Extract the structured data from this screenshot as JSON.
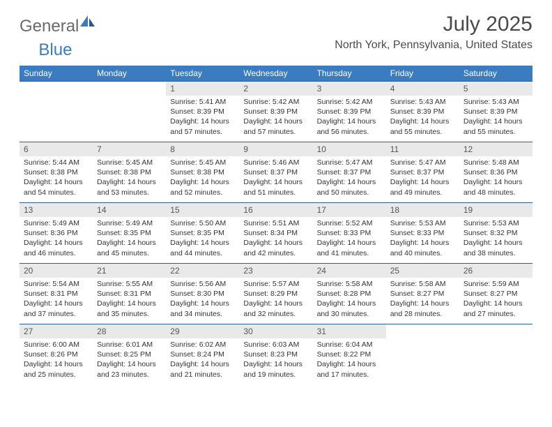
{
  "brand": {
    "part1": "General",
    "part2": "Blue"
  },
  "title": "July 2025",
  "location": "North York, Pennsylvania, United States",
  "colors": {
    "header_bg": "#3b7bbf",
    "header_fg": "#ffffff",
    "daynum_bg": "#e9e9e9",
    "border": "#2f5f8f",
    "logo_gray": "#6a6a6a",
    "logo_blue": "#3b7bbf"
  },
  "day_headers": [
    "Sunday",
    "Monday",
    "Tuesday",
    "Wednesday",
    "Thursday",
    "Friday",
    "Saturday"
  ],
  "weeks": [
    {
      "nums": [
        "",
        "",
        "1",
        "2",
        "3",
        "4",
        "5"
      ],
      "cells": [
        null,
        null,
        {
          "sunrise": "5:41 AM",
          "sunset": "8:39 PM",
          "daylight": "14 hours and 57 minutes."
        },
        {
          "sunrise": "5:42 AM",
          "sunset": "8:39 PM",
          "daylight": "14 hours and 57 minutes."
        },
        {
          "sunrise": "5:42 AM",
          "sunset": "8:39 PM",
          "daylight": "14 hours and 56 minutes."
        },
        {
          "sunrise": "5:43 AM",
          "sunset": "8:39 PM",
          "daylight": "14 hours and 55 minutes."
        },
        {
          "sunrise": "5:43 AM",
          "sunset": "8:39 PM",
          "daylight": "14 hours and 55 minutes."
        }
      ]
    },
    {
      "nums": [
        "6",
        "7",
        "8",
        "9",
        "10",
        "11",
        "12"
      ],
      "cells": [
        {
          "sunrise": "5:44 AM",
          "sunset": "8:38 PM",
          "daylight": "14 hours and 54 minutes."
        },
        {
          "sunrise": "5:45 AM",
          "sunset": "8:38 PM",
          "daylight": "14 hours and 53 minutes."
        },
        {
          "sunrise": "5:45 AM",
          "sunset": "8:38 PM",
          "daylight": "14 hours and 52 minutes."
        },
        {
          "sunrise": "5:46 AM",
          "sunset": "8:37 PM",
          "daylight": "14 hours and 51 minutes."
        },
        {
          "sunrise": "5:47 AM",
          "sunset": "8:37 PM",
          "daylight": "14 hours and 50 minutes."
        },
        {
          "sunrise": "5:47 AM",
          "sunset": "8:37 PM",
          "daylight": "14 hours and 49 minutes."
        },
        {
          "sunrise": "5:48 AM",
          "sunset": "8:36 PM",
          "daylight": "14 hours and 48 minutes."
        }
      ]
    },
    {
      "nums": [
        "13",
        "14",
        "15",
        "16",
        "17",
        "18",
        "19"
      ],
      "cells": [
        {
          "sunrise": "5:49 AM",
          "sunset": "8:36 PM",
          "daylight": "14 hours and 46 minutes."
        },
        {
          "sunrise": "5:49 AM",
          "sunset": "8:35 PM",
          "daylight": "14 hours and 45 minutes."
        },
        {
          "sunrise": "5:50 AM",
          "sunset": "8:35 PM",
          "daylight": "14 hours and 44 minutes."
        },
        {
          "sunrise": "5:51 AM",
          "sunset": "8:34 PM",
          "daylight": "14 hours and 42 minutes."
        },
        {
          "sunrise": "5:52 AM",
          "sunset": "8:33 PM",
          "daylight": "14 hours and 41 minutes."
        },
        {
          "sunrise": "5:53 AM",
          "sunset": "8:33 PM",
          "daylight": "14 hours and 40 minutes."
        },
        {
          "sunrise": "5:53 AM",
          "sunset": "8:32 PM",
          "daylight": "14 hours and 38 minutes."
        }
      ]
    },
    {
      "nums": [
        "20",
        "21",
        "22",
        "23",
        "24",
        "25",
        "26"
      ],
      "cells": [
        {
          "sunrise": "5:54 AM",
          "sunset": "8:31 PM",
          "daylight": "14 hours and 37 minutes."
        },
        {
          "sunrise": "5:55 AM",
          "sunset": "8:31 PM",
          "daylight": "14 hours and 35 minutes."
        },
        {
          "sunrise": "5:56 AM",
          "sunset": "8:30 PM",
          "daylight": "14 hours and 34 minutes."
        },
        {
          "sunrise": "5:57 AM",
          "sunset": "8:29 PM",
          "daylight": "14 hours and 32 minutes."
        },
        {
          "sunrise": "5:58 AM",
          "sunset": "8:28 PM",
          "daylight": "14 hours and 30 minutes."
        },
        {
          "sunrise": "5:58 AM",
          "sunset": "8:27 PM",
          "daylight": "14 hours and 28 minutes."
        },
        {
          "sunrise": "5:59 AM",
          "sunset": "8:27 PM",
          "daylight": "14 hours and 27 minutes."
        }
      ]
    },
    {
      "nums": [
        "27",
        "28",
        "29",
        "30",
        "31",
        "",
        ""
      ],
      "cells": [
        {
          "sunrise": "6:00 AM",
          "sunset": "8:26 PM",
          "daylight": "14 hours and 25 minutes."
        },
        {
          "sunrise": "6:01 AM",
          "sunset": "8:25 PM",
          "daylight": "14 hours and 23 minutes."
        },
        {
          "sunrise": "6:02 AM",
          "sunset": "8:24 PM",
          "daylight": "14 hours and 21 minutes."
        },
        {
          "sunrise": "6:03 AM",
          "sunset": "8:23 PM",
          "daylight": "14 hours and 19 minutes."
        },
        {
          "sunrise": "6:04 AM",
          "sunset": "8:22 PM",
          "daylight": "14 hours and 17 minutes."
        },
        null,
        null
      ]
    }
  ],
  "labels": {
    "sunrise": "Sunrise: ",
    "sunset": "Sunset: ",
    "daylight": "Daylight: "
  }
}
